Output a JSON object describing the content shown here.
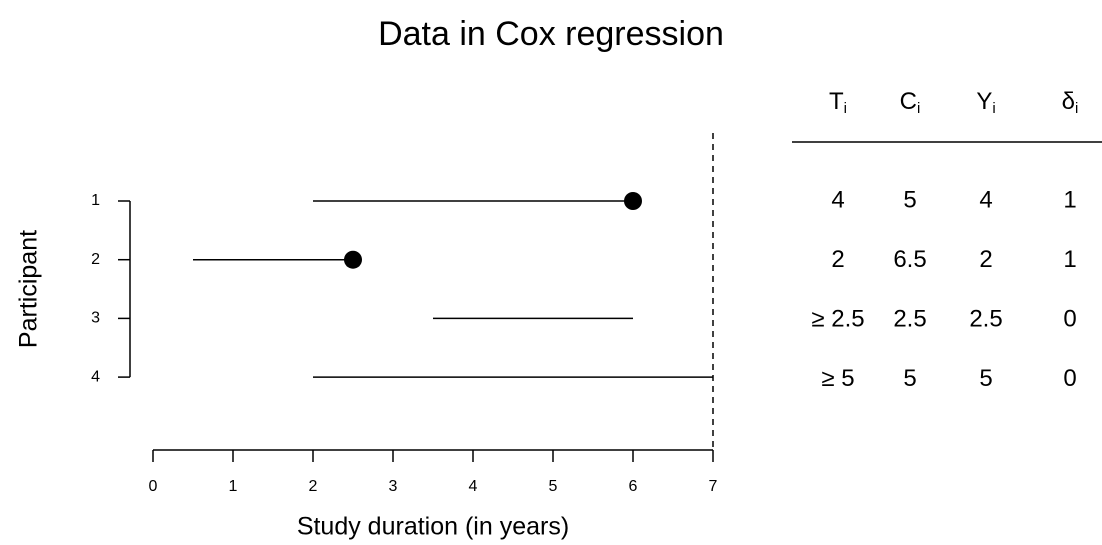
{
  "chart_data": {
    "type": "timeline",
    "title": "Data in Cox regression",
    "x_label": "Study duration (in years)",
    "y_label": "Participant",
    "categories": [
      "1",
      "2",
      "3",
      "4"
    ],
    "start": [
      2,
      0.5,
      3.5,
      2
    ],
    "end": [
      6,
      2.5,
      6,
      7
    ],
    "event": [
      true,
      true,
      false,
      false
    ],
    "study_end": 7,
    "color": "#000000",
    "xlim": [
      0,
      7
    ],
    "xticks": [
      0,
      1,
      2,
      3,
      4,
      5,
      6,
      7
    ]
  },
  "table": {
    "header": [
      {
        "symbol": "T",
        "subscript": "i"
      },
      {
        "symbol": "C",
        "subscript": "i"
      },
      {
        "symbol": "Y",
        "subscript": "i"
      },
      {
        "symbol": "δ",
        "subscript": "i"
      }
    ],
    "rows": [
      [
        "4",
        "5",
        "4",
        "1"
      ],
      [
        "2",
        "6.5",
        "2",
        "1"
      ],
      [
        "≥ 2.5",
        "2.5",
        "2.5",
        "0"
      ],
      [
        "≥ 5",
        "5",
        "5",
        "0"
      ]
    ]
  }
}
